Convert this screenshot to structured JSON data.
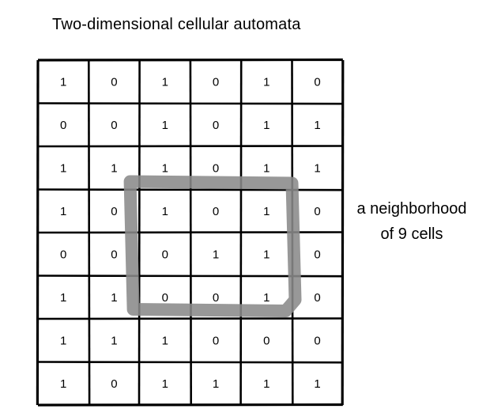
{
  "title": "Two-dimensional cellular automata",
  "grid": [
    [
      "1",
      "0",
      "1",
      "0",
      "1",
      "0"
    ],
    [
      "0",
      "0",
      "1",
      "0",
      "1",
      "1"
    ],
    [
      "1",
      "1",
      "1",
      "0",
      "1",
      "1"
    ],
    [
      "1",
      "0",
      "1",
      "0",
      "1",
      "0"
    ],
    [
      "0",
      "0",
      "0",
      "1",
      "1",
      "0"
    ],
    [
      "1",
      "1",
      "0",
      "0",
      "1",
      "0"
    ],
    [
      "1",
      "1",
      "1",
      "0",
      "0",
      "0"
    ],
    [
      "1",
      "0",
      "1",
      "1",
      "1",
      "1"
    ]
  ],
  "neighborhood": {
    "label_line1": "a neighborhood",
    "label_line2": "of 9 cells",
    "rows": [
      3,
      5
    ],
    "cols": [
      2,
      4
    ],
    "color": "#8a8a8a"
  },
  "colors": {
    "grid_line": "#000000",
    "text": "#000000"
  }
}
